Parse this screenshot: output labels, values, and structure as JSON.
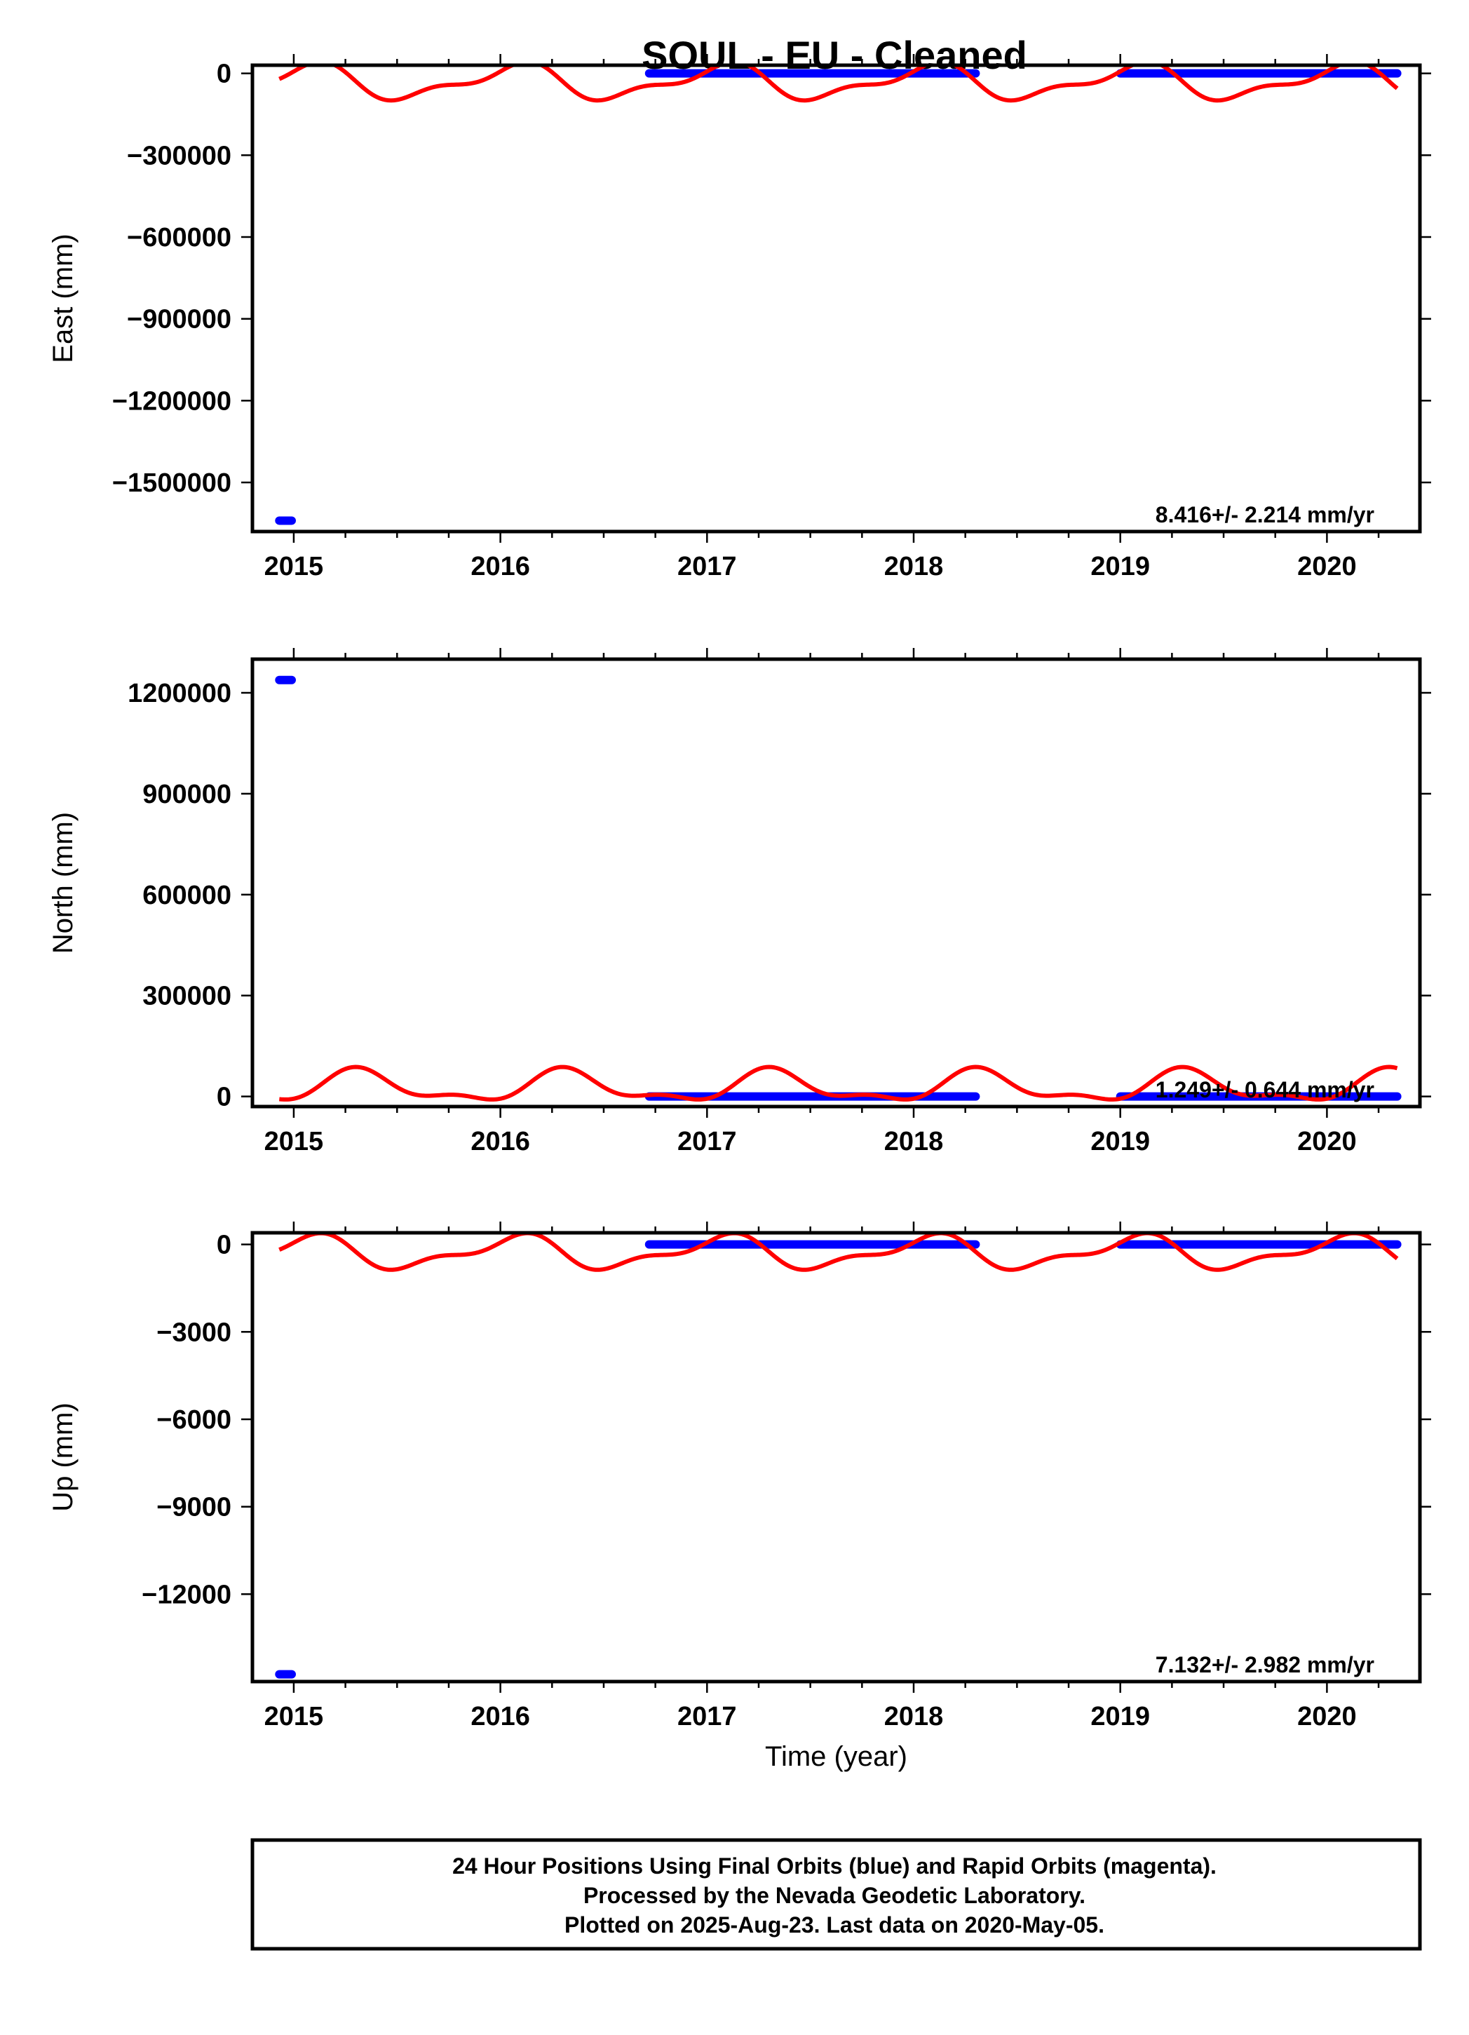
{
  "title": "SOUL  - EU - Cleaned",
  "colors": {
    "final_orbits": "#0000ff",
    "model_fit": "#ff0000",
    "frame": "#000000"
  },
  "footer": {
    "line1": "24 Hour Positions Using Final Orbits (blue) and Rapid Orbits (magenta).",
    "line2": "Processed by the Nevada Geodetic Laboratory.",
    "line3": "Plotted on 2025-Aug-23. Last data on 2020-May-05."
  },
  "chart_data": [
    {
      "type": "scatter",
      "panel": "east",
      "ylabel": "East (mm)",
      "xlabel": "",
      "xlim": [
        2014.8,
        2020.45
      ],
      "ylim": [
        -1680000,
        30000
      ],
      "xticks": [
        2015,
        2016,
        2017,
        2018,
        2019,
        2020
      ],
      "xtick_labels": [
        "2015",
        "2016",
        "2017",
        "2018",
        "2019",
        "2020"
      ],
      "yticks": [
        0,
        -300000,
        -600000,
        -900000,
        -1200000,
        -1500000
      ],
      "ytick_labels": [
        "0",
        "−300000",
        "−600000",
        "−900000",
        "−1200000",
        "−1500000"
      ],
      "rate_text": "8.416+/- 2.214 mm/yr",
      "series": [
        {
          "style": "points",
          "color": "#0000ff",
          "segments": [
            {
              "x": [
                2014.93,
                2014.99
              ],
              "y": -1640000
            },
            {
              "x": [
                2016.72,
                2018.3
              ],
              "y": 0
            },
            {
              "x": [
                2019.0,
                2020.34
              ],
              "y": 0
            }
          ]
        },
        {
          "style": "sine",
          "color": "#ff0000",
          "x_range": [
            2014.93,
            2020.34
          ],
          "a1": 57000,
          "p1": 1.15,
          "a2": 26000,
          "p2": 5.76,
          "offset": -32000
        }
      ]
    },
    {
      "type": "scatter",
      "panel": "north",
      "ylabel": "North (mm)",
      "xlabel": "",
      "xlim": [
        2014.8,
        2020.45
      ],
      "ylim": [
        -30000,
        1300000
      ],
      "xticks": [
        2015,
        2016,
        2017,
        2018,
        2019,
        2020
      ],
      "xtick_labels": [
        "2015",
        "2016",
        "2017",
        "2018",
        "2019",
        "2020"
      ],
      "yticks": [
        0,
        300000,
        600000,
        900000,
        1200000
      ],
      "ytick_labels": [
        "0",
        "300000",
        "600000",
        "900000",
        "1200000"
      ],
      "rate_text": "1.249+/- 0.644 mm/yr",
      "series": [
        {
          "style": "points",
          "color": "#0000ff",
          "segments": [
            {
              "x": [
                2014.93,
                2014.99
              ],
              "y": 1238000
            },
            {
              "x": [
                2016.72,
                2018.3
              ],
              "y": 0
            },
            {
              "x": [
                2019.0,
                2020.34
              ],
              "y": 0
            }
          ]
        },
        {
          "style": "sine",
          "color": "#ff0000",
          "x_range": [
            2014.93,
            2020.34
          ],
          "a1": 42000,
          "p1": -0.42,
          "a2": 19000,
          "p2": 4.19,
          "offset": 27000
        }
      ]
    },
    {
      "type": "scatter",
      "panel": "up",
      "ylabel": "Up (mm)",
      "xlabel": "Time (year)",
      "xlim": [
        2014.8,
        2020.45
      ],
      "ylim": [
        -15000,
        400
      ],
      "xticks": [
        2015,
        2016,
        2017,
        2018,
        2019,
        2020
      ],
      "xtick_labels": [
        "2015",
        "2016",
        "2017",
        "2018",
        "2019",
        "2020"
      ],
      "yticks": [
        0,
        -3000,
        -6000,
        -9000,
        -12000
      ],
      "ytick_labels": [
        "0",
        "−3000",
        "−6000",
        "−9000",
        "−12000"
      ],
      "rate_text": "7.132+/- 2.982 mm/yr",
      "series": [
        {
          "style": "points",
          "color": "#0000ff",
          "segments": [
            {
              "x": [
                2014.93,
                2014.99
              ],
              "y": -14750
            },
            {
              "x": [
                2016.72,
                2018.3
              ],
              "y": 0
            },
            {
              "x": [
                2019.0,
                2020.34
              ],
              "y": 0
            }
          ]
        },
        {
          "style": "sine",
          "color": "#ff0000",
          "x_range": [
            2014.93,
            2020.34
          ],
          "a1": 500,
          "p1": 1.15,
          "a2": 230,
          "p2": 5.76,
          "offset": -280
        }
      ]
    }
  ]
}
